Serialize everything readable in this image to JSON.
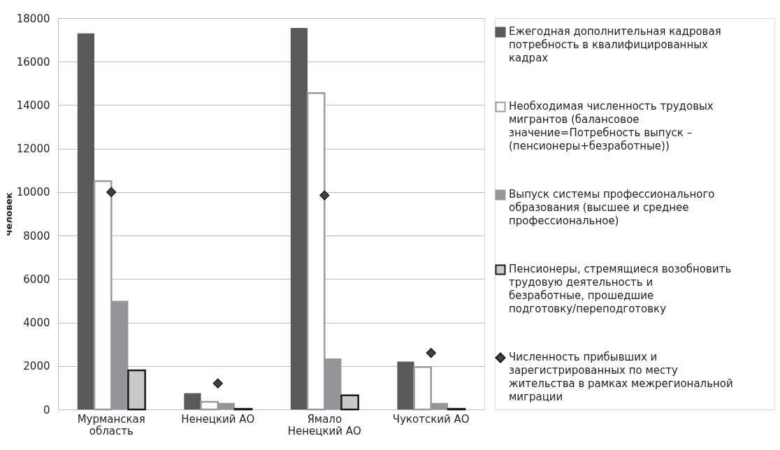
{
  "chart_data": {
    "type": "bar",
    "ylabel": "человек",
    "categories": [
      "Мурманская\nобласть",
      "Ненецкий АО",
      "Ямало\nНенецкий АО",
      "Чукотский АО"
    ],
    "series": [
      {
        "name": "Ежегодная дополнительная кадровая потребность в квалифицированных кадрах",
        "color": "#58595b",
        "values": [
          17300,
          750,
          17550,
          2200
        ]
      },
      {
        "name": "Необходимая численность трудовых мигрантов (балансовое значение=Потребность   выпуск – (пенсионеры+безработные))",
        "color": "#ffffff",
        "values": [
          10500,
          350,
          14550,
          1950
        ]
      },
      {
        "name": "Выпуск системы профессионального образования (высшее и среднее профессиональное)",
        "color": "#939598",
        "values": [
          5000,
          300,
          2350,
          300
        ]
      },
      {
        "name": "Пенсионеры, стремящиеся возобновить трудовую деятельность и безработные, прошедшие подготовку/переподготовку",
        "color": "#c8c9cb",
        "values": [
          1800,
          30,
          650,
          30
        ]
      },
      {
        "name": "Численность прибывших и зарегистрированных по месту жительства в рамках межрегиональной миграции",
        "color": "#404040",
        "type": "scatter",
        "marker": "diamond",
        "values": [
          10000,
          1200,
          9850,
          2600
        ]
      }
    ],
    "ylim": [
      0,
      18000
    ],
    "yticks": [
      0,
      2000,
      4000,
      6000,
      8000,
      10000,
      12000,
      14000,
      16000,
      18000
    ],
    "grid": "y",
    "legend": "right"
  }
}
